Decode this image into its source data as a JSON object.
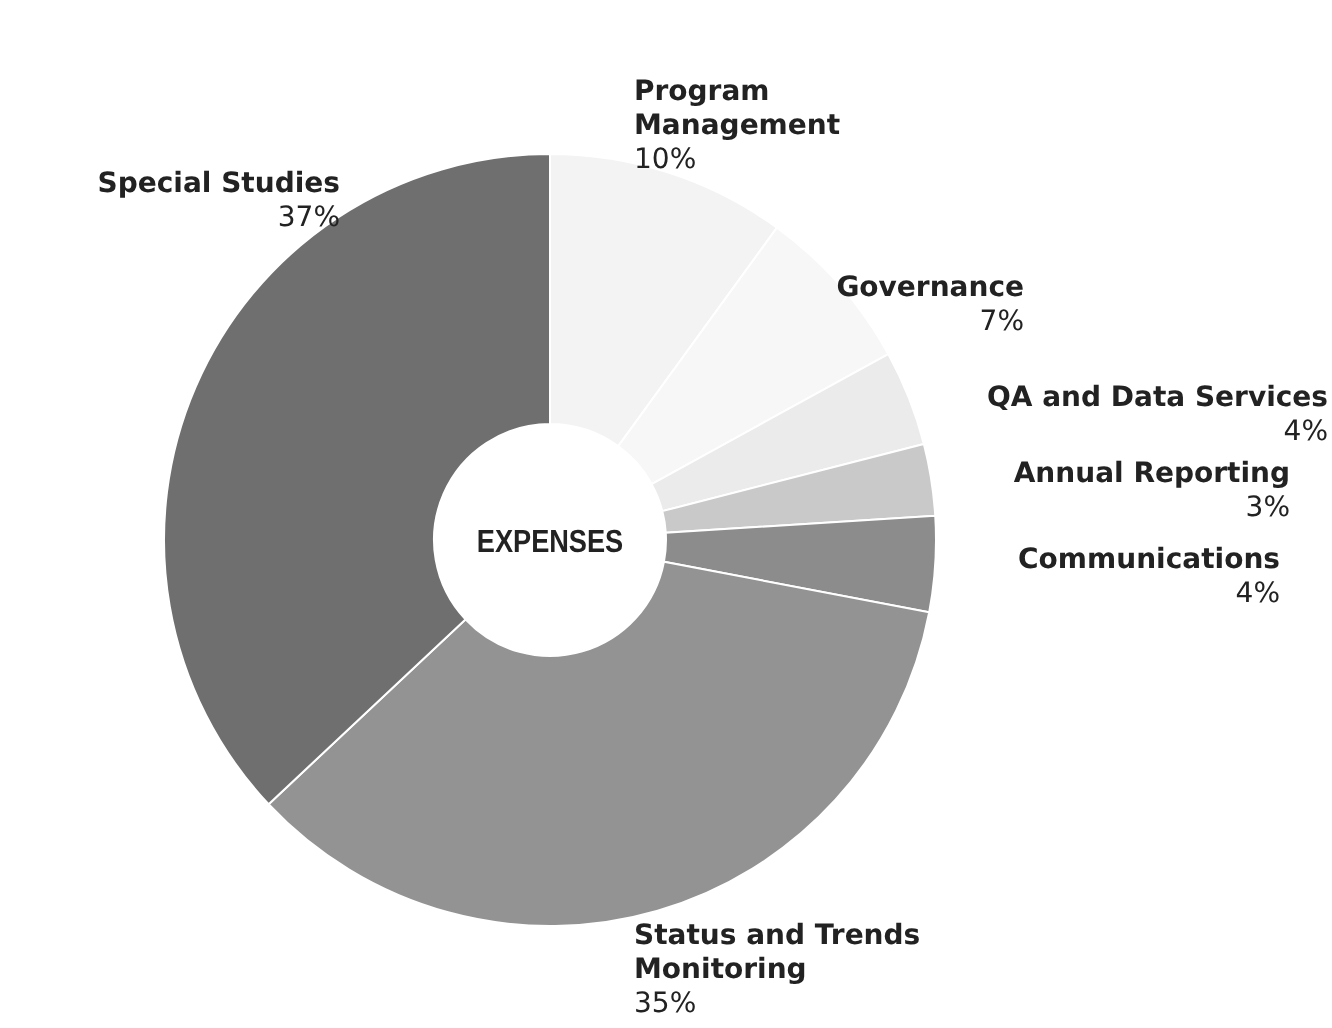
{
  "chart_data": {
    "type": "donut",
    "title": "EXPENSES",
    "categories": [
      "Program Management",
      "Governance",
      "QA and Data Services",
      "Annual Reporting",
      "Communications",
      "Status and Trends Monitoring",
      "Special Studies"
    ],
    "values": [
      10,
      7,
      4,
      3,
      4,
      35,
      37
    ],
    "value_labels": [
      "10%",
      "7%",
      "4%",
      "3%",
      "4%",
      "35%",
      "37%"
    ],
    "colors": [
      "#f3f3f3",
      "#f7f7f7",
      "#ebebeb",
      "#c9c9c9",
      "#8c8c8c",
      "#939393",
      "#6f6f6f"
    ],
    "legend": false
  }
}
